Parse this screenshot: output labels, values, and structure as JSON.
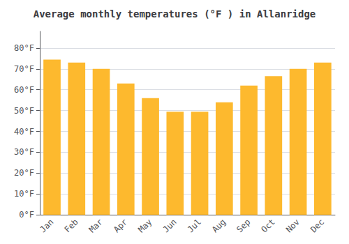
{
  "chart_data": {
    "type": "bar",
    "title": "Average monthly temperatures (°F ) in Allanridge",
    "categories": [
      "Jan",
      "Feb",
      "Mar",
      "Apr",
      "May",
      "Jun",
      "Jul",
      "Aug",
      "Sep",
      "Oct",
      "Nov",
      "Dec"
    ],
    "values": [
      74.5,
      73,
      70,
      63,
      56,
      49.5,
      49.5,
      54,
      62,
      66.5,
      70,
      73
    ],
    "color": "#FDB92E",
    "ylim": [
      0,
      88
    ],
    "yticks": [
      {
        "value": 0,
        "label": "0°F"
      },
      {
        "value": 10,
        "label": "10°F"
      },
      {
        "value": 20,
        "label": "20°F"
      },
      {
        "value": 30,
        "label": "30°F"
      },
      {
        "value": 40,
        "label": "40°F"
      },
      {
        "value": 50,
        "label": "50°F"
      },
      {
        "value": 60,
        "label": "60°F"
      },
      {
        "value": 70,
        "label": "70°F"
      },
      {
        "value": 80,
        "label": "80°F"
      }
    ],
    "grid": true
  }
}
